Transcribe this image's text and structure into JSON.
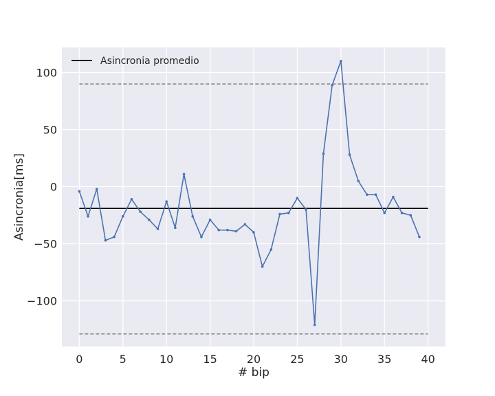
{
  "chart_data": {
    "type": "line",
    "title": "",
    "xlabel": "# bip",
    "ylabel": "Asincronia[ms]",
    "xlim": [
      -2,
      42
    ],
    "ylim": [
      -140,
      122
    ],
    "xticks": [
      0,
      5,
      10,
      15,
      20,
      25,
      30,
      35,
      40
    ],
    "yticks": [
      -100,
      -50,
      0,
      50,
      100
    ],
    "ytick_labels": [
      "−100",
      "−50",
      "0",
      "50",
      "100"
    ],
    "grid": true,
    "legend": {
      "placement": "top-left",
      "entries": [
        "Asincronia promedio"
      ]
    },
    "series": [
      {
        "color": "#4c72b0",
        "marker": "dot",
        "x": [
          0,
          1,
          2,
          3,
          4,
          5,
          6,
          7,
          8,
          9,
          10,
          11,
          12,
          13,
          14,
          15,
          16,
          17,
          18,
          19,
          20,
          21,
          22,
          23,
          24,
          25,
          26,
          27,
          28,
          29,
          30,
          31,
          32,
          33,
          34,
          35,
          36,
          37,
          38,
          39
        ],
        "y": [
          -4,
          -26,
          -2,
          -47,
          -44,
          -26,
          -11,
          -22,
          -29,
          -37,
          -13,
          -36,
          11,
          -26,
          -44,
          -29,
          -38,
          -38,
          -39,
          -33,
          -40,
          -70,
          -55,
          -24,
          -23,
          -10,
          -20,
          -121,
          29,
          89,
          110,
          28,
          5,
          -7,
          -7,
          -23,
          -9,
          -23,
          -25,
          -44
        ]
      }
    ],
    "reference_lines": [
      {
        "name": "Asincronia promedio",
        "y": -19,
        "x_from": 0,
        "x_to": 40,
        "color": "#000000",
        "style": "solid"
      },
      {
        "y": 90,
        "x_from": 0,
        "x_to": 40,
        "color": "#808080",
        "style": "dashed"
      },
      {
        "y": -129,
        "x_from": 0,
        "x_to": 40,
        "color": "#808080",
        "style": "dashed"
      }
    ],
    "colors": {
      "plot_background": "#eaeaf2",
      "grid": "#ffffff"
    }
  }
}
